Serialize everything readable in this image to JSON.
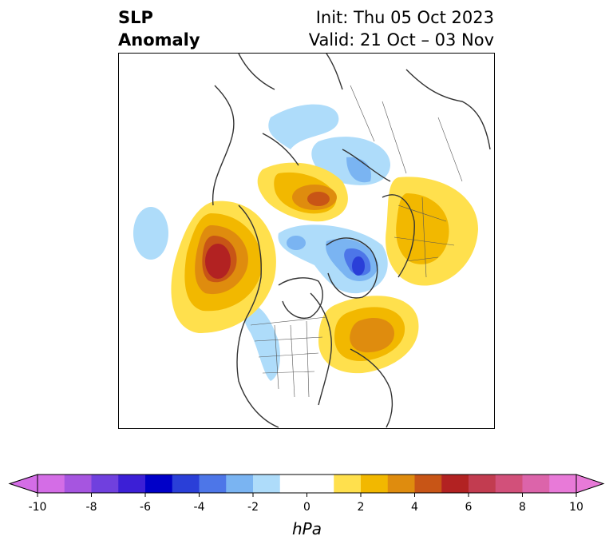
{
  "title": {
    "left_line1": "SLP",
    "left_line2": "Anomaly",
    "right_line1": "Init: Thu 05 Oct 2023",
    "right_line2": "Valid: 21 Oct – 03 Nov"
  },
  "colorbar": {
    "unit": "hPa",
    "min": -10,
    "max": 10,
    "step": 1,
    "extend": "both",
    "tick_labels": [
      "-10",
      "-8",
      "-6",
      "-4",
      "-2",
      "0",
      "2",
      "4",
      "6",
      "8",
      "10"
    ],
    "colors": [
      "#d46de6",
      "#a655e0",
      "#7040de",
      "#3c1fd6",
      "#0000c8",
      "#2a3fd8",
      "#4d76e8",
      "#7ab4f2",
      "#aedcfa",
      "#ffffff",
      "#ffffff",
      "#ffe04d",
      "#f2b800",
      "#df8c0e",
      "#c85516",
      "#b22222",
      "#c23c50",
      "#d2507a",
      "#dc64aa",
      "#e87ad8"
    ],
    "extend_low_color": "#d46de6",
    "extend_high_color": "#e87ad8"
  },
  "map": {
    "projection": "north-polar-stereographic",
    "field": "sea level pressure anomaly"
  }
}
